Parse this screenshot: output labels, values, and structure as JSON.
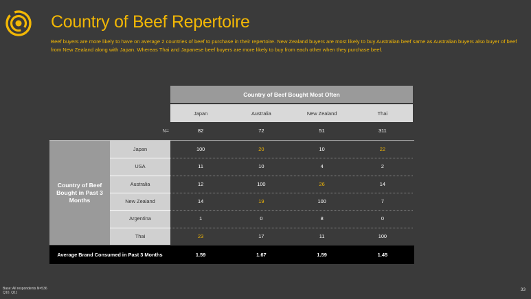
{
  "header": {
    "title": "Country of Beef Repertoire",
    "description": "Beef buyers are more likely to have on average 2 countries of beef to purchase in their repertoire. New Zealand buyers are most likely to buy Australian beef same as Australian buyers also buyer of beef from  New Zealand along with Japan. Whereas Thai and Japanese beef buyers are more likely to buy from each other when they purchase beef."
  },
  "table": {
    "column_group_title": "Country of Beef Bought Most Often",
    "columns": [
      "Japan",
      "Australia",
      "New Zealand",
      "Thai"
    ],
    "n_label": "N=",
    "n_values": [
      "82",
      "72",
      "51",
      "311"
    ],
    "row_group_title": "Country of Beef Bought in Past 3 Months",
    "rows": [
      {
        "label": "Japan",
        "values": [
          "100",
          "20",
          "10",
          "22"
        ]
      },
      {
        "label": "USA",
        "values": [
          "11",
          "10",
          "4",
          "2"
        ]
      },
      {
        "label": "Australia",
        "values": [
          "12",
          "100",
          "26",
          "14"
        ]
      },
      {
        "label": "New Zealand",
        "values": [
          "14",
          "19",
          "100",
          "7"
        ]
      },
      {
        "label": "Argentina",
        "values": [
          "1",
          "0",
          "8",
          "0"
        ]
      },
      {
        "label": "Thai",
        "values": [
          "23",
          "17",
          "11",
          "100"
        ]
      }
    ],
    "average_label": "Average Brand Consumed in Past 3 Months",
    "average_values": [
      "1.59",
      "1.67",
      "1.59",
      "1.45"
    ]
  },
  "footer": {
    "base_note": "Base: All respondents N=536",
    "question_note": "Q10, Q11",
    "page_number": "33"
  },
  "colors": {
    "accent": "#f2b705",
    "background": "#3a3a3a",
    "header_gray": "#9a9a9a",
    "light_gray": "#d9d9d9"
  },
  "icons": {
    "logo": "concentric-target-icon"
  }
}
